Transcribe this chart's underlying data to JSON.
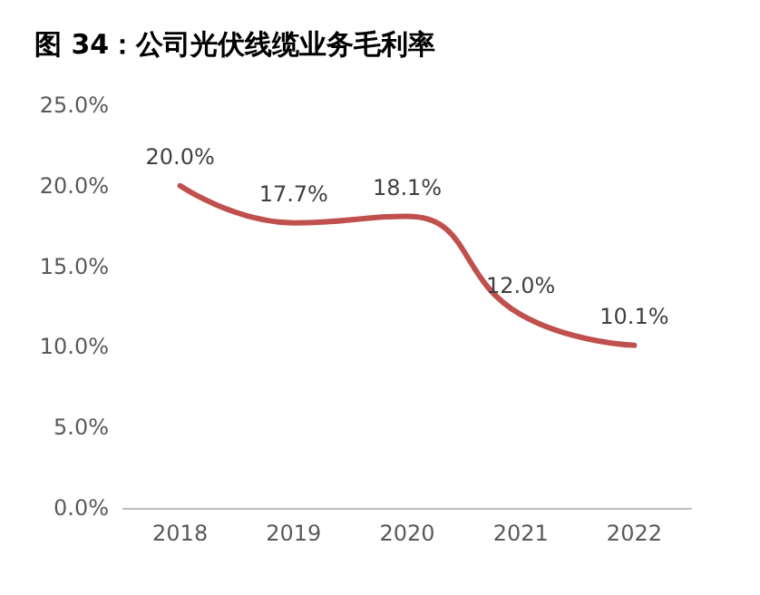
{
  "chart_data": {
    "type": "line",
    "title": "图 34：公司光伏线缆业务毛利率",
    "categories": [
      "2018",
      "2019",
      "2020",
      "2021",
      "2022"
    ],
    "values": [
      20.0,
      17.7,
      18.1,
      12.0,
      10.1
    ],
    "value_labels": [
      "20.0%",
      "17.7%",
      "18.1%",
      "12.0%",
      "10.1%"
    ],
    "color": "#c0504d",
    "ylim": [
      0,
      25
    ],
    "yticks": [
      {
        "value": 0,
        "label": "0.0%"
      },
      {
        "value": 5,
        "label": "5.0%"
      },
      {
        "value": 10,
        "label": "10.0%"
      },
      {
        "value": 15,
        "label": "15.0%"
      },
      {
        "value": 20,
        "label": "20.0%"
      },
      {
        "value": 25,
        "label": "25.0%"
      }
    ],
    "grid": false,
    "marker": "none",
    "line_style": "solid"
  }
}
